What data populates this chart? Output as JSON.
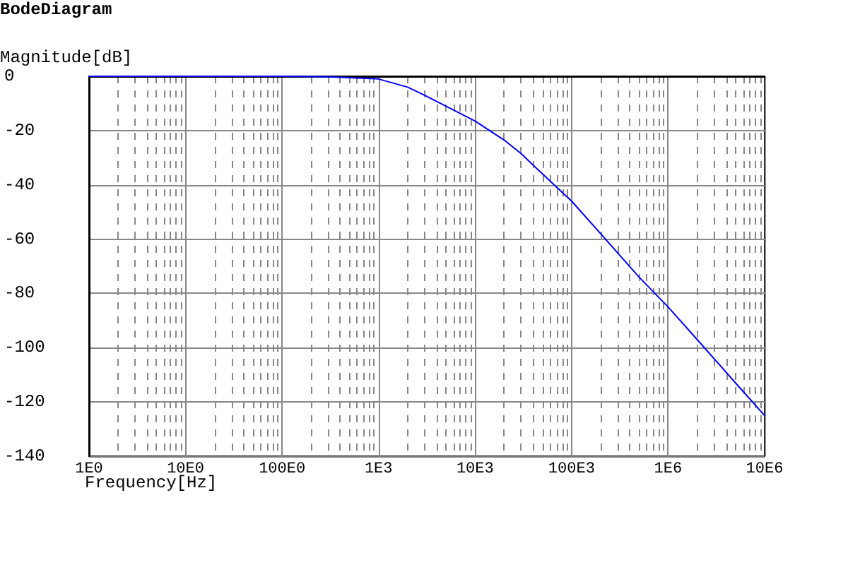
{
  "chart_data": {
    "type": "line",
    "title": "BodeDiagram",
    "xlabel": "Frequency[Hz]",
    "ylabel": "Magnitude[dB]",
    "log": "x",
    "x": [
      1,
      10,
      100,
      300,
      500,
      1000,
      2000,
      3000,
      5000,
      10000,
      20000,
      30000,
      50000,
      100000,
      200000,
      500000,
      1000000,
      2000000,
      5000000,
      10000000
    ],
    "series": [
      {
        "color": "#0000ff",
        "values": [
          0,
          0,
          0,
          -0.2,
          -0.5,
          -1,
          -4,
          -7,
          -11,
          -16.5,
          -23.5,
          -28.5,
          -36,
          -46,
          -58,
          -74,
          -85,
          -97,
          -113,
          -125
        ]
      }
    ],
    "xlim": [
      1,
      10000000
    ],
    "ylim": [
      -140,
      0
    ],
    "xticks": [
      {
        "value": 1,
        "label": "1E0"
      },
      {
        "value": 2,
        "label": null
      },
      {
        "value": 3,
        "label": null
      },
      {
        "value": 4,
        "label": null
      },
      {
        "value": 5,
        "label": null
      },
      {
        "value": 6,
        "label": null
      },
      {
        "value": 7,
        "label": null
      },
      {
        "value": 8,
        "label": null
      },
      {
        "value": 9,
        "label": null
      },
      {
        "value": 10,
        "label": "10E0"
      },
      {
        "value": 20,
        "label": null
      },
      {
        "value": 30,
        "label": null
      },
      {
        "value": 40,
        "label": null
      },
      {
        "value": 50,
        "label": null
      },
      {
        "value": 60,
        "label": null
      },
      {
        "value": 70,
        "label": null
      },
      {
        "value": 80,
        "label": null
      },
      {
        "value": 90,
        "label": null
      },
      {
        "value": 100,
        "label": "100E0"
      },
      {
        "value": 200,
        "label": null
      },
      {
        "value": 300,
        "label": null
      },
      {
        "value": 400,
        "label": null
      },
      {
        "value": 500,
        "label": null
      },
      {
        "value": 600,
        "label": null
      },
      {
        "value": 700,
        "label": null
      },
      {
        "value": 800,
        "label": null
      },
      {
        "value": 900,
        "label": null
      },
      {
        "value": 1000,
        "label": "1E3"
      },
      {
        "value": 2000,
        "label": null
      },
      {
        "value": 3000,
        "label": null
      },
      {
        "value": 4000,
        "label": null
      },
      {
        "value": 5000,
        "label": null
      },
      {
        "value": 6000,
        "label": null
      },
      {
        "value": 7000,
        "label": null
      },
      {
        "value": 8000,
        "label": null
      },
      {
        "value": 9000,
        "label": null
      },
      {
        "value": 10000,
        "label": "10E3"
      },
      {
        "value": 20000,
        "label": null
      },
      {
        "value": 30000,
        "label": null
      },
      {
        "value": 40000,
        "label": null
      },
      {
        "value": 50000,
        "label": null
      },
      {
        "value": 60000,
        "label": null
      },
      {
        "value": 70000,
        "label": null
      },
      {
        "value": 80000,
        "label": null
      },
      {
        "value": 90000,
        "label": null
      },
      {
        "value": 100000,
        "label": "100E3"
      },
      {
        "value": 200000,
        "label": null
      },
      {
        "value": 300000,
        "label": null
      },
      {
        "value": 400000,
        "label": null
      },
      {
        "value": 500000,
        "label": null
      },
      {
        "value": 600000,
        "label": null
      },
      {
        "value": 700000,
        "label": null
      },
      {
        "value": 800000,
        "label": null
      },
      {
        "value": 900000,
        "label": null
      },
      {
        "value": 1000000,
        "label": "1E6"
      },
      {
        "value": 2000000,
        "label": null
      },
      {
        "value": 3000000,
        "label": null
      },
      {
        "value": 4000000,
        "label": null
      },
      {
        "value": 5000000,
        "label": null
      },
      {
        "value": 6000000,
        "label": null
      },
      {
        "value": 7000000,
        "label": null
      },
      {
        "value": 8000000,
        "label": null
      },
      {
        "value": 9000000,
        "label": null
      },
      {
        "value": 10000000,
        "label": "10E6"
      }
    ],
    "yticks": [
      0,
      -20,
      -40,
      -60,
      -80,
      -100,
      -120,
      -140
    ],
    "grid": true,
    "marker": "none",
    "line_style": "solid"
  }
}
